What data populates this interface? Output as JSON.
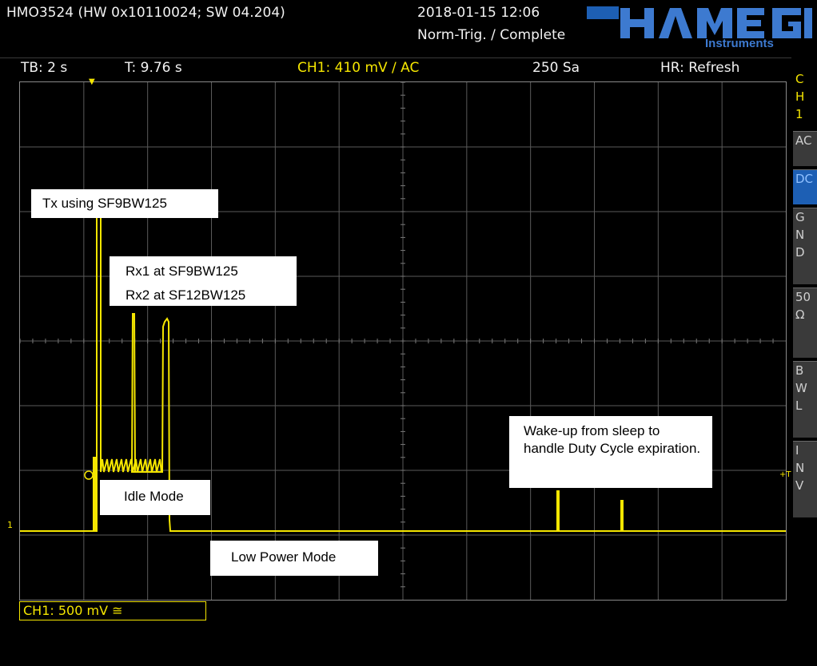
{
  "header": {
    "device": "HMO3524 (HW 0x10110024; SW 04.204)",
    "datetime": "2018-01-15 12:06",
    "trigger_status": "Norm-Trig. / Complete",
    "logo_text": "HAMEG",
    "logo_sub": "Instruments"
  },
  "status_bar": {
    "timebase": "TB: 2 s",
    "trigger_time": "T: 9.76 s",
    "channel_trigger": "CH1: 410 mV ∕ AC",
    "sample_rate": "250 Sa",
    "high_res": "HR: Refresh"
  },
  "side_panel": {
    "items": [
      {
        "label": "C\nH\n1",
        "active": false
      },
      {
        "label": "AC",
        "active": false
      },
      {
        "label": "DC",
        "active": true
      },
      {
        "label": "G\nN\nD",
        "active": false
      },
      {
        "label": "50\nΩ",
        "active": false
      },
      {
        "label": "B\nW\nL",
        "active": false
      },
      {
        "label": "I\nN\nV",
        "active": false
      }
    ]
  },
  "plot": {
    "trigger_marker": "T",
    "ground_marker": "1"
  },
  "annotations": {
    "tx": "Tx using SF9BW125",
    "rx1": "Rx1 at SF9BW125",
    "rx2": "Rx2 at SF12BW125",
    "idle": "Idle Mode",
    "low_power": "Low Power Mode",
    "wakeup": "Wake-up from sleep to handle Duty Cycle expiration."
  },
  "footer": {
    "channel_scale": "CH1: 500 mV ≅"
  },
  "colors": {
    "trace": "#f5e600",
    "grid": "#5a5a5a",
    "active_button": "#1d5fb4"
  }
}
